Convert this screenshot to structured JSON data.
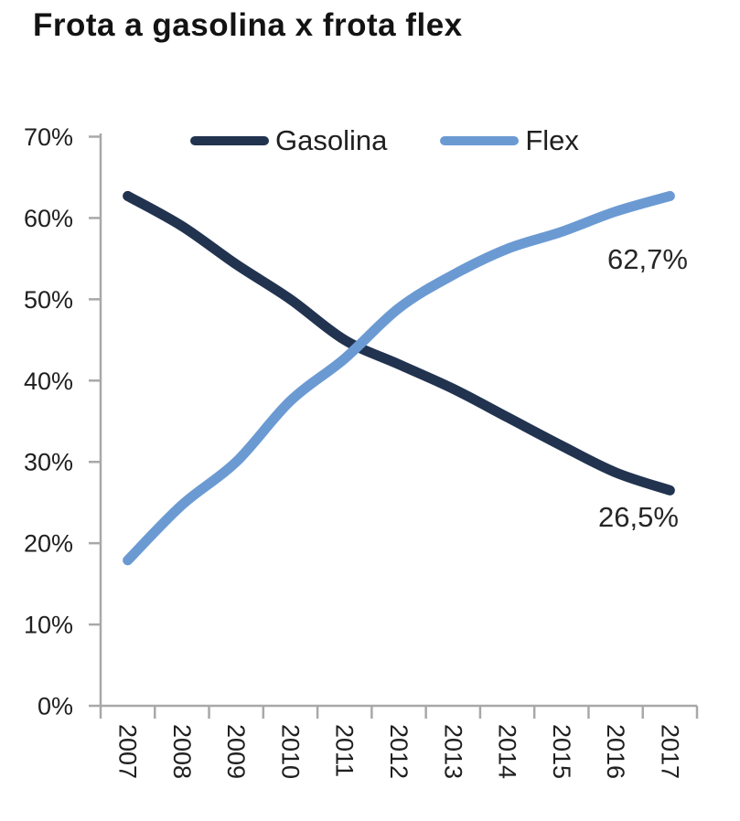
{
  "page": {
    "title": "Frota a gasolina x frota flex"
  },
  "chart_data": {
    "type": "line",
    "title": "Frota a gasolina x frota flex",
    "categories": [
      "2007",
      "2008",
      "2009",
      "2010",
      "2011",
      "2012",
      "2013",
      "2014",
      "2015",
      "2016",
      "2017"
    ],
    "series": [
      {
        "name": "Gasolina",
        "color": "#21334f",
        "values": [
          62.7,
          59.0,
          54.3,
          50.0,
          45.0,
          42.0,
          39.0,
          35.5,
          32.0,
          28.7,
          26.5
        ]
      },
      {
        "name": "Flex",
        "color": "#6b9ad3",
        "values": [
          17.9,
          24.7,
          30.0,
          37.5,
          42.7,
          48.9,
          53.0,
          56.2,
          58.3,
          60.8,
          62.7
        ]
      }
    ],
    "end_labels": [
      {
        "series": "Flex",
        "text": "62,7%",
        "value": 62.7
      },
      {
        "series": "Gasolina",
        "text": "26,5%",
        "value": 26.5
      }
    ],
    "y_ticks": [
      "0%",
      "10%",
      "20%",
      "30%",
      "40%",
      "50%",
      "60%",
      "70%"
    ],
    "ylim": [
      0,
      70
    ],
    "xlabel": "",
    "ylabel": "",
    "grid": false,
    "legend_position": "top-inside",
    "line_width": 11,
    "smooth": true,
    "axis_color": "#a8a8a8",
    "text_color": "#1f1f1f"
  }
}
